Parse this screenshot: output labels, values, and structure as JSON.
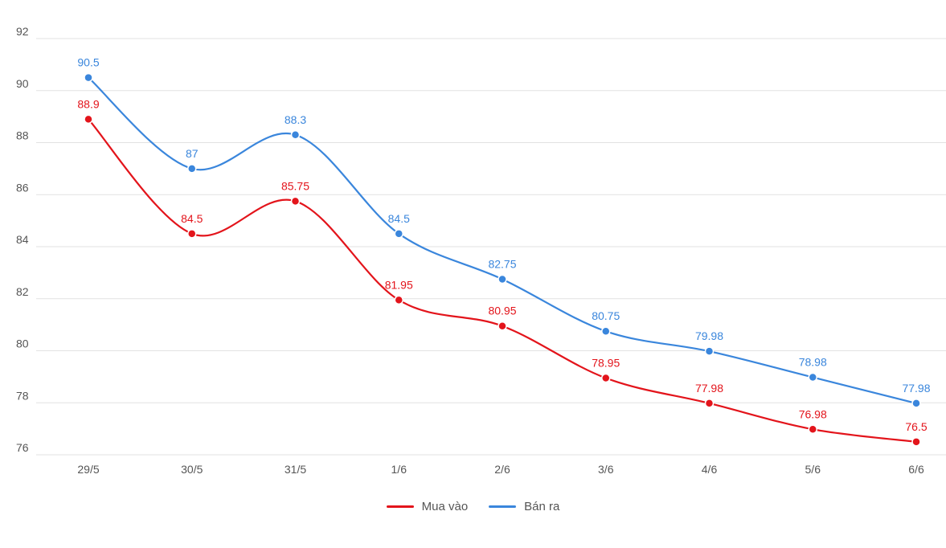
{
  "chart_data": {
    "type": "line",
    "categories": [
      "29/5",
      "30/5",
      "31/5",
      "1/6",
      "2/6",
      "3/6",
      "4/6",
      "5/6",
      "6/6"
    ],
    "series": [
      {
        "name": "Mua vào",
        "color": "#e3141b",
        "values": [
          88.9,
          84.5,
          85.75,
          81.95,
          80.95,
          78.95,
          77.98,
          76.98,
          76.5
        ],
        "labels": [
          "88.9",
          "84.5",
          "85.75",
          "81.95",
          "80.95",
          "78.95",
          "77.98",
          "76.98",
          "76.5"
        ]
      },
      {
        "name": "Bán ra",
        "color": "#3a86dc",
        "values": [
          90.5,
          87,
          88.3,
          84.5,
          82.75,
          80.75,
          79.98,
          78.98,
          77.98
        ],
        "labels": [
          "90.5",
          "87",
          "88.3",
          "84.5",
          "82.75",
          "80.75",
          "79.98",
          "78.98",
          "77.98"
        ]
      }
    ],
    "ylim": [
      76,
      92
    ],
    "yticks": [
      "76",
      "78",
      "80",
      "82",
      "84",
      "86",
      "88",
      "90",
      "92"
    ],
    "grid": true,
    "legend_position": "bottom-center",
    "smooth": true,
    "title": "",
    "xlabel": "",
    "ylabel": ""
  }
}
